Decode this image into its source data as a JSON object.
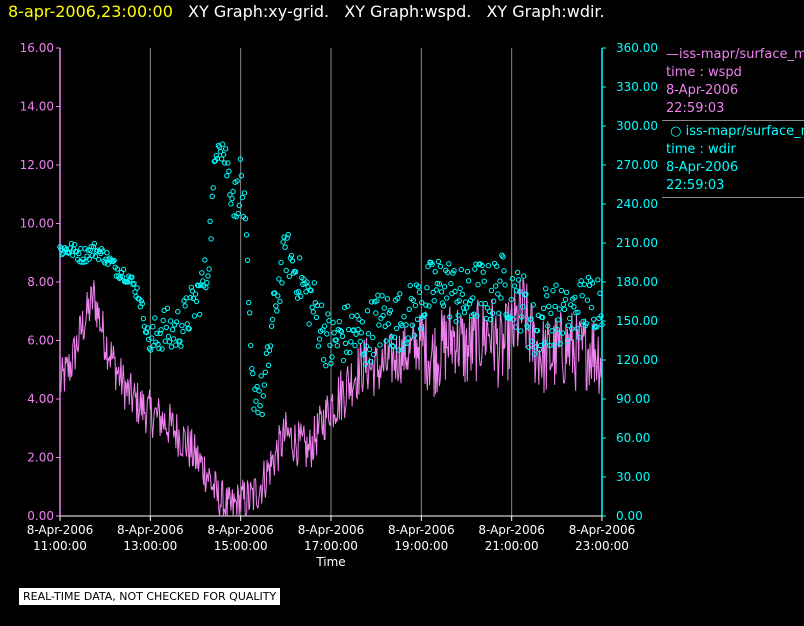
{
  "header": {
    "date": "8-apr-2006,23:00:00",
    "graphs": [
      "XY Graph:xy-grid.",
      "XY Graph:wspd.",
      "XY Graph:wdir."
    ]
  },
  "legend": [
    {
      "line1": "iss-mapr/surface_m",
      "line2": "time : wspd",
      "line3": "8-Apr-2006",
      "line4": "22:59:03",
      "color": "#ee82ee",
      "marker": "line"
    },
    {
      "line1": "iss-mapr/surface_m",
      "line2": "time : wdir",
      "line3": "8-Apr-2006",
      "line4": "22:59:03",
      "color": "#00ffff",
      "marker": "circle"
    }
  ],
  "footer_note": "REAL-TIME DATA, NOT CHECKED FOR QUALITY",
  "colors": {
    "wspd": "#ee82ee",
    "wdir": "#00ffff",
    "title_date": "#ffff00",
    "grid": "#888888",
    "axis_text": "#ffffff"
  },
  "chart_data": {
    "type": "line",
    "xlabel": "Time",
    "x_tick_labels": [
      [
        "8-Apr-2006",
        "11:00:00"
      ],
      [
        "8-Apr-2006",
        "13:00:00"
      ],
      [
        "8-Apr-2006",
        "15:00:00"
      ],
      [
        "8-Apr-2006",
        "17:00:00"
      ],
      [
        "8-Apr-2006",
        "19:00:00"
      ],
      [
        "8-Apr-2006",
        "21:00:00"
      ],
      [
        "8-Apr-2006",
        "23:00:00"
      ]
    ],
    "x_ticks": [
      11,
      13,
      15,
      17,
      19,
      21,
      23
    ],
    "xlim": [
      11,
      23
    ],
    "left_axis": {
      "ylim": [
        0,
        16
      ],
      "ticks": [
        "0.00",
        "2.00",
        "4.00",
        "6.00",
        "8.00",
        "10.00",
        "12.00",
        "14.00",
        "16.00"
      ]
    },
    "right_axis": {
      "ylim": [
        0,
        360
      ],
      "ticks": [
        "0.00",
        "30.00",
        "60.00",
        "90.00",
        "120.00",
        "150.00",
        "180.00",
        "210.00",
        "240.00",
        "270.00",
        "300.00",
        "330.00",
        "360.00"
      ]
    },
    "grid": "vertical",
    "legend_position": "right",
    "series": [
      {
        "name": "iss-mapr/surface_m time : wspd",
        "axis": "left",
        "style": "line",
        "x": [
          11.0,
          11.25,
          11.5,
          11.75,
          12.0,
          12.25,
          12.5,
          12.75,
          13.0,
          13.25,
          13.5,
          13.75,
          14.0,
          14.25,
          14.5,
          14.75,
          15.0,
          15.25,
          15.5,
          15.75,
          16.0,
          16.25,
          16.5,
          16.75,
          17.0,
          17.25,
          17.5,
          17.75,
          18.0,
          18.25,
          18.5,
          18.75,
          19.0,
          19.25,
          19.5,
          19.75,
          20.0,
          20.25,
          20.5,
          20.75,
          21.0,
          21.25,
          21.5,
          21.75,
          22.0,
          22.25,
          22.5,
          22.75,
          23.0
        ],
        "values": [
          4.5,
          5.2,
          6.5,
          7.5,
          6.0,
          5.0,
          4.2,
          3.8,
          3.5,
          3.3,
          3.0,
          2.6,
          2.0,
          1.5,
          0.6,
          0.2,
          0.5,
          0.6,
          1.2,
          2.0,
          2.8,
          2.5,
          2.2,
          3.0,
          3.8,
          4.2,
          4.8,
          5.2,
          5.0,
          5.2,
          5.5,
          5.6,
          6.0,
          5.4,
          5.8,
          6.2,
          5.6,
          6.0,
          6.4,
          5.6,
          6.2,
          7.0,
          5.8,
          5.4,
          5.6,
          5.8,
          5.5,
          5.8,
          5.4
        ],
        "noise": [
          0.8,
          1.0,
          1.4
        ]
      },
      {
        "name": "iss-mapr/surface_m time : wdir",
        "axis": "right",
        "style": "scatter",
        "x": [
          11.0,
          11.25,
          11.5,
          11.75,
          12.0,
          12.25,
          12.5,
          12.75,
          13.0,
          13.25,
          13.5,
          13.75,
          14.0,
          14.25,
          14.4,
          14.5,
          14.6,
          14.75,
          14.9,
          15.0,
          15.1,
          15.25,
          15.5,
          15.75,
          16.0,
          16.25,
          16.5,
          16.75,
          17.0,
          17.25,
          17.5,
          17.75,
          18.0,
          18.25,
          18.5,
          18.75,
          19.0,
          19.25,
          19.5,
          19.75,
          20.0,
          20.25,
          20.5,
          20.75,
          21.0,
          21.25,
          21.5,
          21.75,
          22.0,
          22.25,
          22.5,
          22.75,
          23.0
        ],
        "values": [
          205,
          205,
          200,
          205,
          200,
          190,
          185,
          170,
          130,
          145,
          140,
          150,
          165,
          185,
          250,
          300,
          285,
          260,
          240,
          262,
          225,
          100,
          90,
          160,
          205,
          185,
          170,
          150,
          130,
          140,
          140,
          135,
          150,
          150,
          150,
          155,
          165,
          175,
          180,
          170,
          165,
          175,
          170,
          180,
          170,
          165,
          140,
          155,
          155,
          150,
          160,
          165,
          170
        ]
      }
    ]
  }
}
